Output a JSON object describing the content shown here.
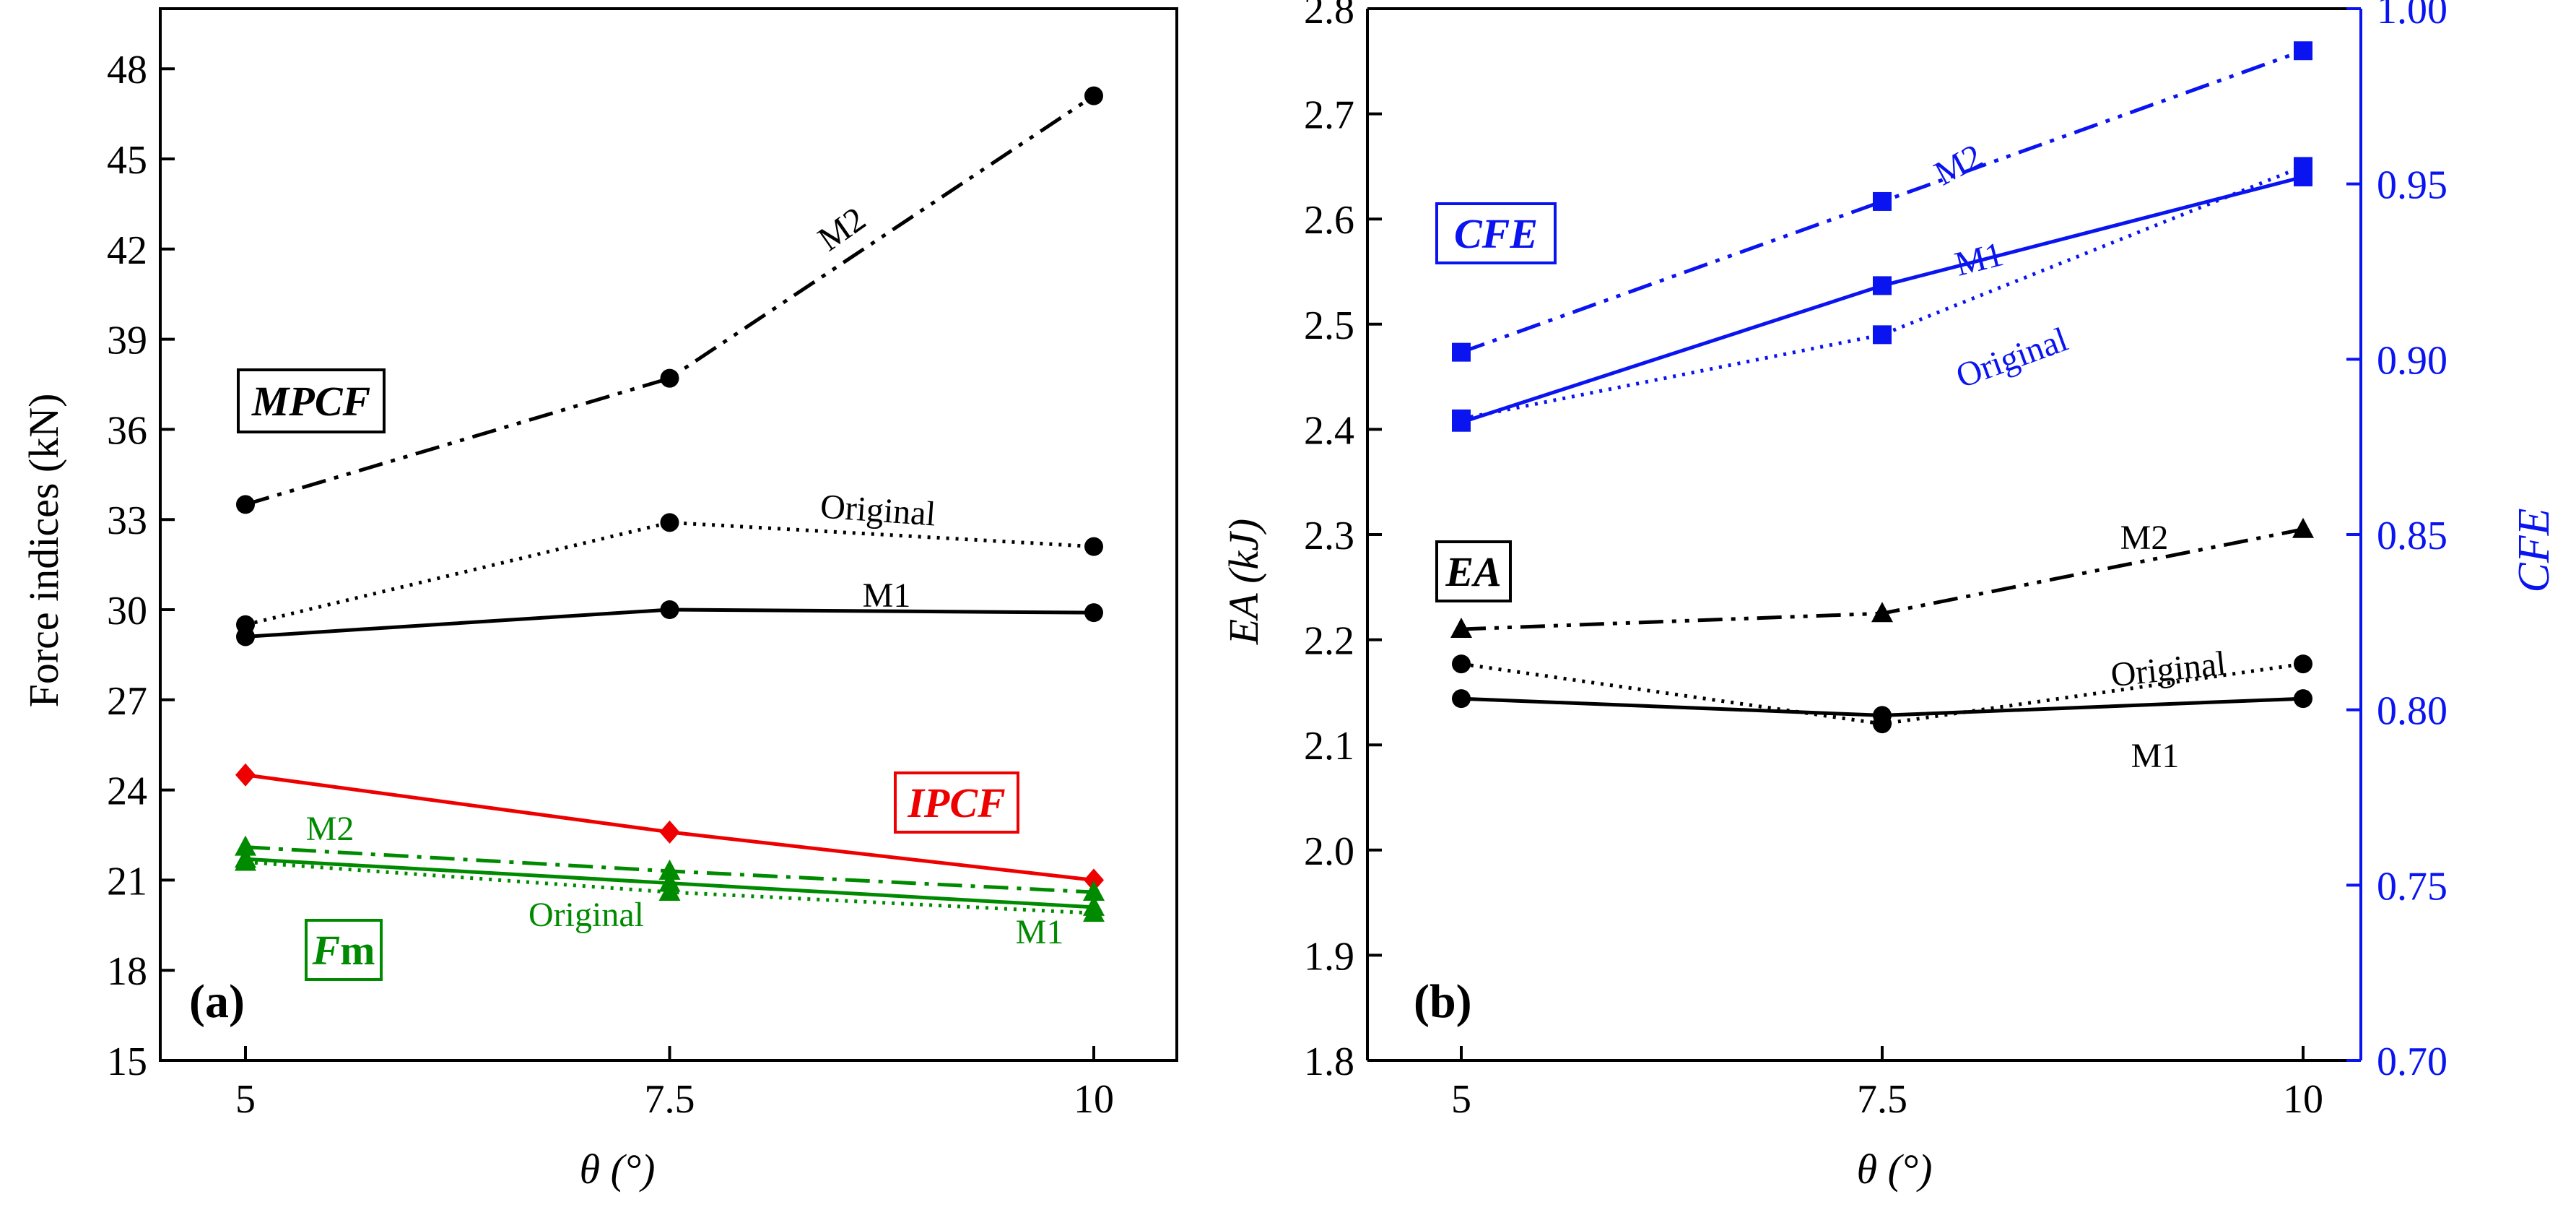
{
  "figure": {
    "panel_a_label": "(a)",
    "panel_b_label": "(b)"
  },
  "chart_data": [
    {
      "id": "a",
      "type": "line",
      "xlabel": "θ (°)",
      "ylabel": "Force indices (kN)",
      "x": [
        5,
        7.5,
        10
      ],
      "x_ticks": [
        "5",
        "7.5",
        "10"
      ],
      "ylim": [
        15,
        50
      ],
      "y_ticks": [
        "15",
        "18",
        "21",
        "24",
        "27",
        "30",
        "33",
        "36",
        "39",
        "42",
        "45",
        "48"
      ],
      "groups": [
        {
          "name": "MPCF",
          "color": "#000000",
          "box_label": "MPCF",
          "box_style": "bold-italic"
        },
        {
          "name": "IPCF",
          "color": "#ee0000",
          "box_label": "IPCF",
          "box_style": "bold-italic"
        },
        {
          "name": "Fm",
          "color": "#008a00",
          "box_label": "Fm",
          "box_style": "bold-italic-first"
        }
      ],
      "series": [
        {
          "group": "MPCF",
          "name": "M2",
          "values": [
            33.5,
            37.7,
            47.1
          ],
          "dash": "dashdotdot",
          "marker": "circle",
          "color": "#000000"
        },
        {
          "group": "MPCF",
          "name": "Original",
          "values": [
            29.5,
            32.9,
            32.1
          ],
          "dash": "dot",
          "marker": "circle",
          "color": "#000000"
        },
        {
          "group": "MPCF",
          "name": "M1",
          "values": [
            29.1,
            30.0,
            29.9
          ],
          "dash": "solid",
          "marker": "circle",
          "color": "#000000"
        },
        {
          "group": "IPCF",
          "name": "IPCF",
          "values": [
            24.5,
            22.6,
            21.0
          ],
          "dash": "solid",
          "marker": "diamond",
          "color": "#ee0000"
        },
        {
          "group": "Fm",
          "name": "M2",
          "values": [
            22.1,
            21.3,
            20.6
          ],
          "dash": "dashdot",
          "marker": "triangle",
          "color": "#008a00"
        },
        {
          "group": "Fm",
          "name": "Original",
          "values": [
            21.6,
            20.6,
            19.9
          ],
          "dash": "dot",
          "marker": "triangle",
          "color": "#008a00"
        },
        {
          "group": "Fm",
          "name": "M1",
          "values": [
            21.7,
            20.9,
            20.1
          ],
          "dash": "solid",
          "marker": "triangle",
          "color": "#008a00"
        }
      ],
      "annotations": [
        "M2",
        "Original",
        "M1",
        "M2",
        "Original",
        "M1"
      ]
    },
    {
      "id": "b",
      "type": "line",
      "xlabel": "θ (°)",
      "ylabel_left": "EA (kJ)",
      "ylabel_right": "CFE",
      "x": [
        5,
        7.5,
        10
      ],
      "x_ticks": [
        "5",
        "7.5",
        "10"
      ],
      "ylim_left": [
        1.8,
        2.8
      ],
      "ylim_right": [
        0.7,
        1.0
      ],
      "y_ticks_left": [
        "1.8",
        "1.9",
        "2.0",
        "2.1",
        "2.2",
        "2.3",
        "2.4",
        "2.5",
        "2.6",
        "2.7",
        "2.8"
      ],
      "y_ticks_right": [
        "0.70",
        "0.75",
        "0.80",
        "0.85",
        "0.90",
        "0.95",
        "1.00"
      ],
      "groups": [
        {
          "name": "CFE",
          "color": "#0a14f0",
          "box_label": "CFE",
          "axis": "right"
        },
        {
          "name": "EA",
          "color": "#000000",
          "box_label": "EA",
          "axis": "left"
        }
      ],
      "series": [
        {
          "group": "CFE",
          "axis": "right",
          "name": "M2",
          "values": [
            0.902,
            0.945,
            0.988
          ],
          "dash": "dashdotdot",
          "marker": "square",
          "color": "#0a14f0"
        },
        {
          "group": "CFE",
          "axis": "right",
          "name": "M1",
          "values": [
            0.882,
            0.921,
            0.952
          ],
          "dash": "solid",
          "marker": "square",
          "color": "#0a14f0"
        },
        {
          "group": "CFE",
          "axis": "right",
          "name": "Original",
          "values": [
            0.883,
            0.907,
            0.955
          ],
          "dash": "dot",
          "marker": "square",
          "color": "#0a14f0"
        },
        {
          "group": "EA",
          "axis": "left",
          "name": "M2",
          "values": [
            2.21,
            2.225,
            2.305
          ],
          "dash": "dashdotdot",
          "marker": "triangle",
          "color": "#000000"
        },
        {
          "group": "EA",
          "axis": "left",
          "name": "Original",
          "values": [
            2.177,
            2.12,
            2.177
          ],
          "dash": "dot",
          "marker": "circle",
          "color": "#000000"
        },
        {
          "group": "EA",
          "axis": "left",
          "name": "M1",
          "values": [
            2.144,
            2.128,
            2.144
          ],
          "dash": "solid",
          "marker": "circle",
          "color": "#000000"
        }
      ],
      "annotations": [
        "M2",
        "M1",
        "Original",
        "M2",
        "Original",
        "M1"
      ]
    }
  ]
}
